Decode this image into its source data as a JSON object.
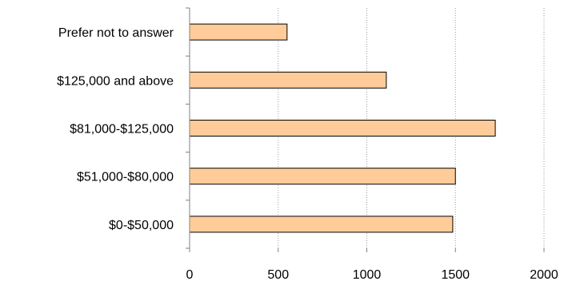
{
  "chart_data": {
    "type": "bar",
    "orientation": "horizontal",
    "title": "",
    "xlabel": "",
    "ylabel": "",
    "categories": [
      "$0-$50,000",
      "$51,000-$80,000",
      "$81,000-$125,000",
      "$125,000 and above",
      "Prefer not to answer"
    ],
    "values": [
      1485,
      1500,
      1725,
      1110,
      550
    ],
    "xlim": [
      0,
      2000
    ],
    "xticks": [
      0,
      500,
      1000,
      1500,
      2000
    ],
    "xtick_labels": [
      "0",
      "500",
      "1000",
      "1500",
      "2000"
    ],
    "grid": "vertical dotted",
    "legend": "none",
    "colors": {
      "bar_fill": "#FFCC99",
      "bar_stroke": "#000000",
      "grid": "#999999",
      "axis": "#808080"
    }
  }
}
